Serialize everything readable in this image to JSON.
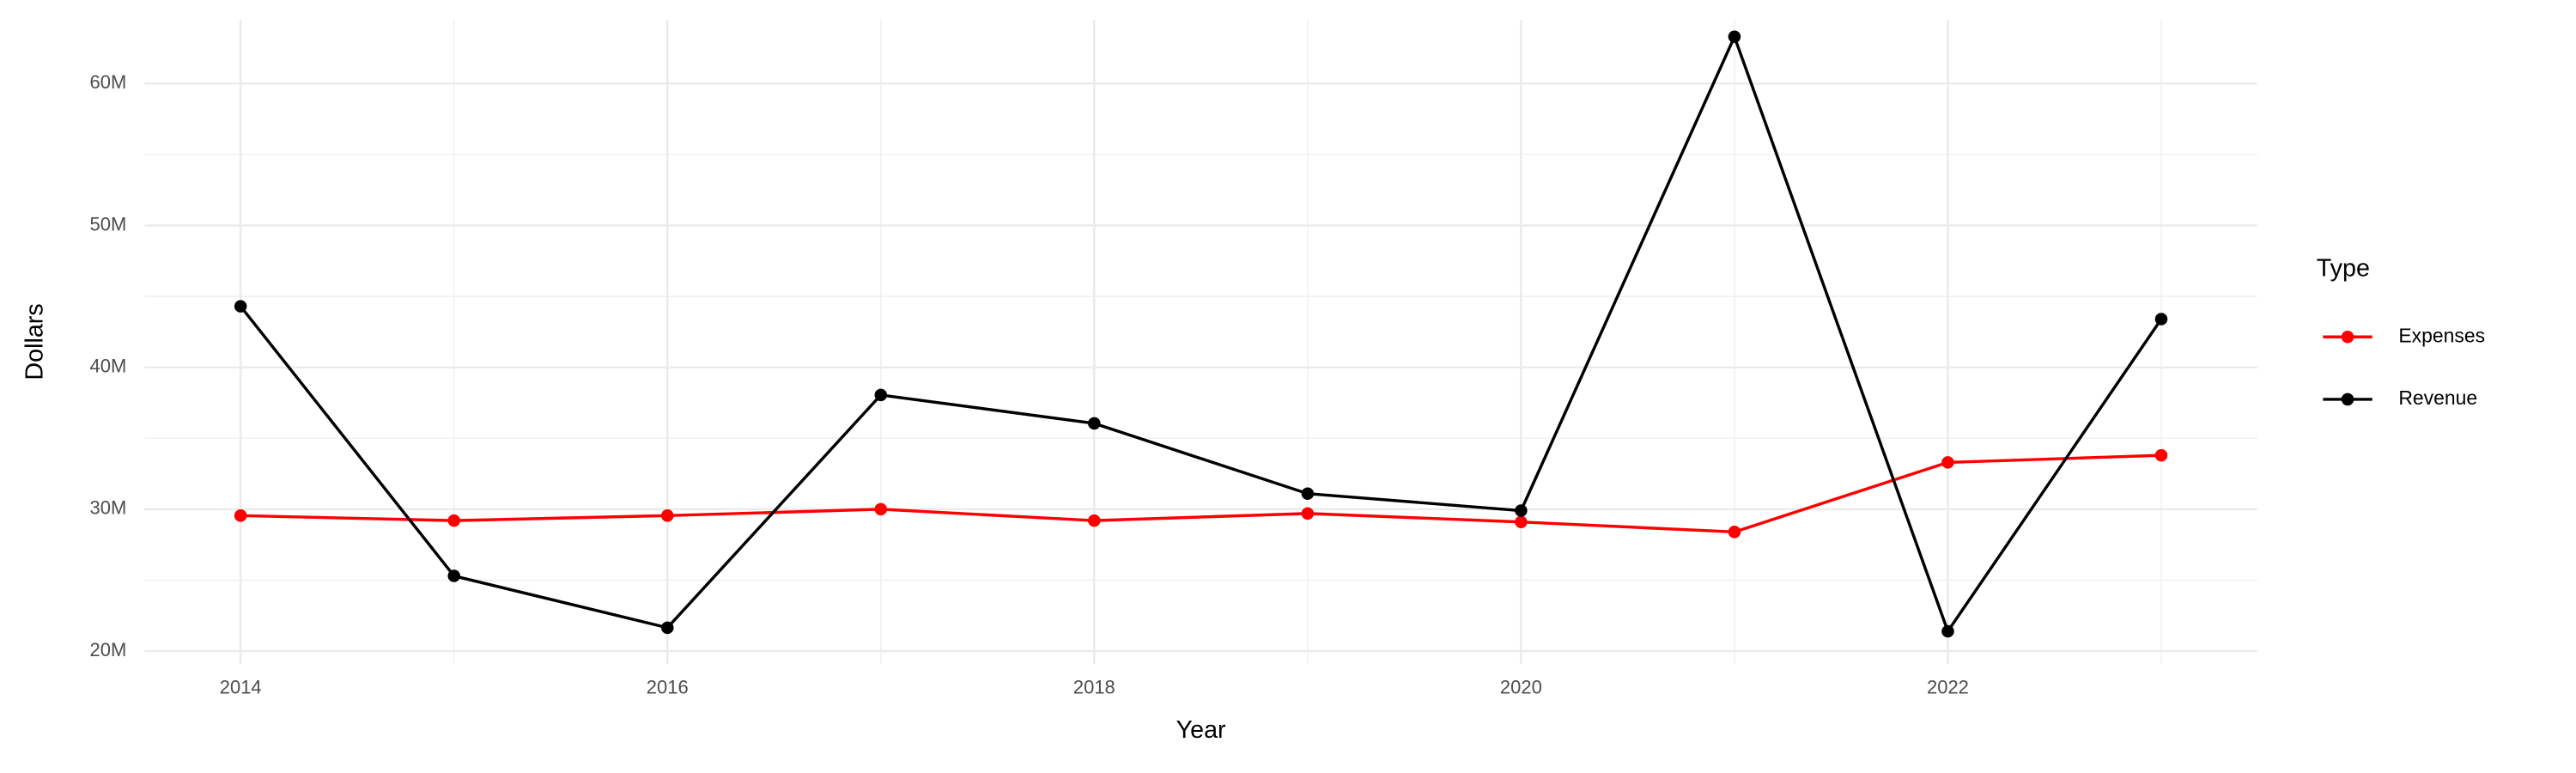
{
  "chart_data": {
    "type": "line",
    "x_label": "Year",
    "y_label": "Dollars",
    "legend_title": "Type",
    "legend_position": "right",
    "grid": true,
    "x": [
      2014,
      2015,
      2016,
      2017,
      2018,
      2019,
      2020,
      2021,
      2022,
      2023
    ],
    "series": [
      {
        "name": "Expenses",
        "color": "#ff0000",
        "values": [
          29550000,
          29200000,
          29550000,
          30000000,
          29200000,
          29700000,
          29100000,
          28400000,
          33300000,
          33800000
        ]
      },
      {
        "name": "Revenue",
        "color": "#000000",
        "values": [
          44300000,
          25300000,
          21650000,
          38050000,
          36050000,
          31100000,
          29900000,
          63300000,
          21400000,
          43400000
        ]
      }
    ],
    "xlim": [
      2013.55,
      2023.45
    ],
    "xticks": [
      2014,
      2016,
      2018,
      2020,
      2022
    ],
    "ylim": [
      19100000,
      64500000
    ],
    "yticks": [
      {
        "value": 20000000,
        "label": "20M"
      },
      {
        "value": 30000000,
        "label": "30M"
      },
      {
        "value": 40000000,
        "label": "40M"
      },
      {
        "value": 50000000,
        "label": "50M"
      },
      {
        "value": 60000000,
        "label": "60M"
      }
    ]
  }
}
